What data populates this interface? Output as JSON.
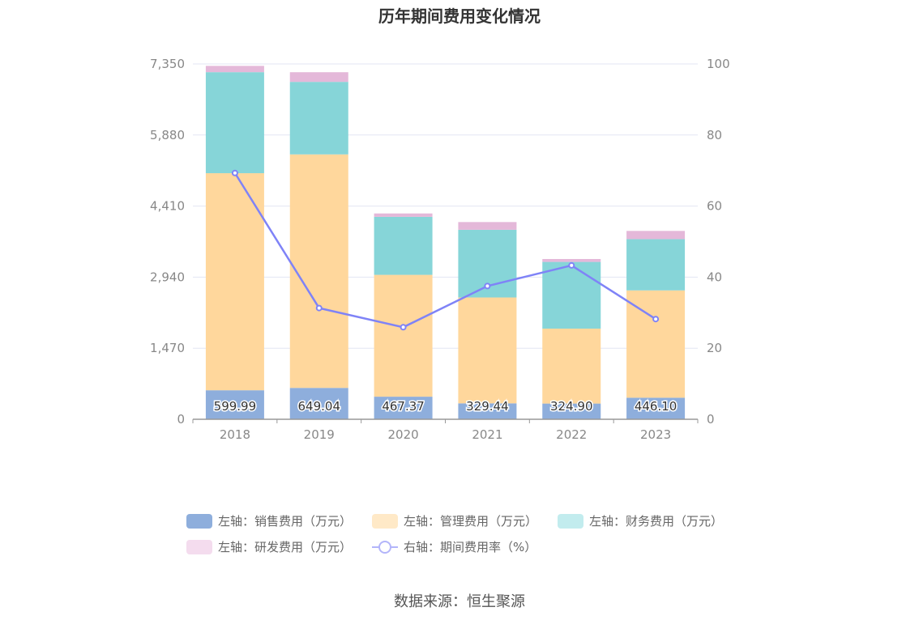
{
  "title": "历年期间费用变化情况",
  "source": "数据来源：恒生聚源",
  "chart_data": {
    "type": "bar",
    "stacked": true,
    "categories": [
      "2018",
      "2019",
      "2020",
      "2021",
      "2022",
      "2023"
    ],
    "series": [
      {
        "name": "左轴：销售费用（万元）",
        "axis": "left",
        "type": "bar",
        "color": "#8eaedc",
        "values": [
          599.99,
          649.04,
          467.37,
          329.44,
          324.9,
          446.1
        ],
        "labels": [
          "599.99",
          "649.04",
          "467.37",
          "329.44",
          "324.90",
          "446.10"
        ]
      },
      {
        "name": "左轴：管理费用（万元）",
        "axis": "left",
        "type": "bar",
        "color": "#ffd79c",
        "values": [
          4490,
          4830,
          2520,
          2190,
          1550,
          2220
        ]
      },
      {
        "name": "左轴：财务费用（万元）",
        "axis": "left",
        "type": "bar",
        "color": "#86d5d8",
        "values": [
          2090,
          1500,
          1200,
          1400,
          1380,
          1060
        ]
      },
      {
        "name": "左轴：研发费用（万元）",
        "axis": "left",
        "type": "bar",
        "color": "#e4b8d9",
        "values": [
          130,
          200,
          70,
          160,
          60,
          170
        ]
      },
      {
        "name": "右轴：期间费用率（%）",
        "axis": "right",
        "type": "line",
        "color": "#7f83f7",
        "values": [
          69.3,
          31.3,
          25.9,
          37.5,
          43.3,
          28.2
        ]
      }
    ],
    "y_left": {
      "min": 0,
      "max": 7350,
      "ticks": [
        "0",
        "1,470",
        "2,940",
        "4,410",
        "5,880",
        "7,350"
      ]
    },
    "y_right": {
      "min": 0,
      "max": 100,
      "ticks": [
        "0",
        "20",
        "40",
        "60",
        "80",
        "100"
      ]
    },
    "grid": true,
    "legend_position": "bottom"
  }
}
